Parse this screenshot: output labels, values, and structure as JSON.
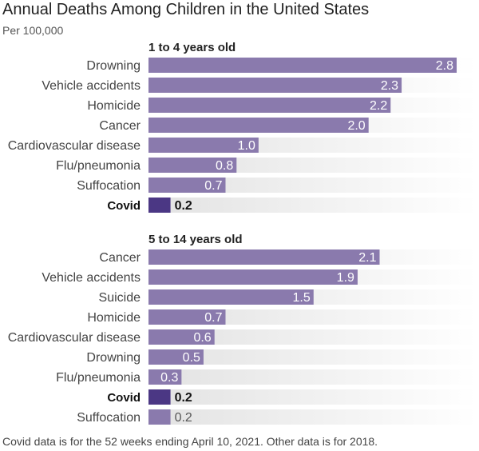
{
  "title": "Annual Deaths Among Children in the United States",
  "subtitle": "Per 100,000",
  "footnote": "Covid data is for the 52 weeks ending April 10, 2021. Other data is for 2018.",
  "colors": {
    "bar": "#8a7aad",
    "highlight": "#4b3784",
    "track_start": "#e2e2e2",
    "track_end": "#ffffff",
    "label_inside": "#ffffff",
    "label_outside": "#333333"
  },
  "chart_data": [
    {
      "type": "bar",
      "orientation": "horizontal",
      "title": "1 to 4 years old",
      "highlight": "Covid",
      "xlim": [
        0,
        2.8
      ],
      "categories": [
        "Drowning",
        "Vehicle accidents",
        "Homicide",
        "Cancer",
        "Cardiovascular disease",
        "Flu/pneumonia",
        "Suffocation",
        "Covid"
      ],
      "values": [
        2.8,
        2.3,
        2.2,
        2.0,
        1.0,
        0.8,
        0.7,
        0.2
      ],
      "data_labels": [
        "2.8",
        "2.3",
        "2.2",
        "2.0",
        "1.0",
        "0.8",
        "0.7",
        "0.2"
      ]
    },
    {
      "type": "bar",
      "orientation": "horizontal",
      "title": "5 to 14 years old",
      "highlight": "Covid",
      "xlim": [
        0,
        2.8
      ],
      "categories": [
        "Cancer",
        "Vehicle accidents",
        "Suicide",
        "Homicide",
        "Cardiovascular disease",
        "Drowning",
        "Flu/pneumonia",
        "Covid",
        "Suffocation"
      ],
      "values": [
        2.1,
        1.9,
        1.5,
        0.7,
        0.6,
        0.5,
        0.3,
        0.2,
        0.2
      ],
      "data_labels": [
        "2.1",
        "1.9",
        "1.5",
        "0.7",
        "0.6",
        "0.5",
        "0.3",
        "0.2",
        "0.2"
      ]
    }
  ]
}
